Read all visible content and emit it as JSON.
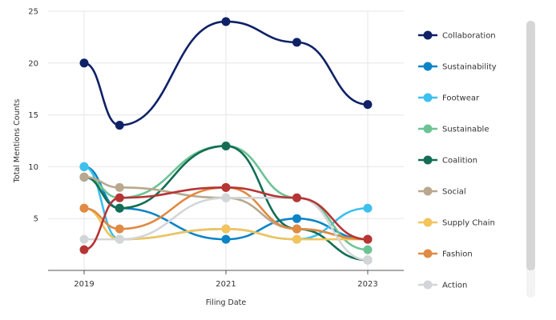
{
  "chart_data": {
    "type": "line",
    "xlabel": "Filing Date",
    "ylabel": "Total Mentions Counts",
    "x": [
      2019,
      2019.5,
      2021,
      2022,
      2023
    ],
    "x_ticks": [
      "2019",
      "2021",
      "2023"
    ],
    "y_ticks": [
      "5",
      "10",
      "15",
      "20",
      "25"
    ],
    "ylim": [
      0,
      25
    ],
    "grid": true,
    "legend_position": "right",
    "series": [
      {
        "name": "Collaboration",
        "color": "#0f2167",
        "values": [
          20,
          14,
          24,
          22,
          16
        ]
      },
      {
        "name": "Sustainability",
        "color": "#0b84c6",
        "values": [
          10,
          6,
          3,
          5,
          3
        ]
      },
      {
        "name": "Footwear",
        "color": "#3cc0ee",
        "values": [
          10,
          3,
          4,
          3,
          6
        ]
      },
      {
        "name": "Sustainable",
        "color": "#6cc394",
        "values": [
          9,
          7,
          12,
          7,
          2
        ]
      },
      {
        "name": "Coalition",
        "color": "#136e55",
        "values": [
          9,
          6,
          12,
          4,
          1
        ]
      },
      {
        "name": "Social",
        "color": "#b9a88e",
        "values": [
          9,
          8,
          7,
          4,
          3
        ]
      },
      {
        "name": "Supply Chain",
        "color": "#f2c45a",
        "values": [
          6,
          3,
          4,
          3,
          3
        ]
      },
      {
        "name": "Fashion",
        "color": "#e08a43",
        "values": [
          6,
          4,
          8,
          4,
          3
        ]
      },
      {
        "name": "Action",
        "color": "#d3d6d9",
        "values": [
          3,
          3,
          7,
          7,
          1
        ]
      },
      {
        "name": "",
        "color": "#b73434",
        "values": [
          2,
          7,
          8,
          7,
          3
        ]
      }
    ]
  }
}
